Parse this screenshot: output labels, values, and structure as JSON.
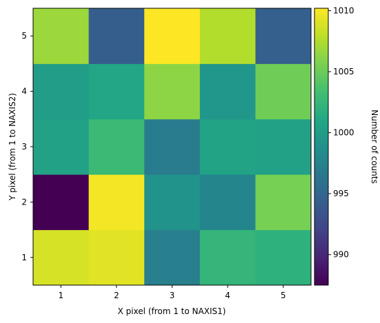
{
  "chart_data": {
    "type": "heatmap",
    "xlabel": "X pixel (from 1 to NAXIS1)",
    "ylabel": "Y pixel (from 1 to NAXIS2)",
    "x": [
      1,
      2,
      3,
      4,
      5
    ],
    "y": [
      1,
      2,
      3,
      4,
      5
    ],
    "values": [
      [
        1008.8,
        1009.2,
        997.2,
        1002.4,
        1002.0
      ],
      [
        987.5,
        1009.8,
        999.0,
        997.8,
        1005.5
      ],
      [
        1000.4,
        1002.8,
        996.9,
        1000.6,
        1000.4
      ],
      [
        1000.0,
        1000.9,
        1006.3,
        999.3,
        1005.2
      ],
      [
        1006.8,
        994.2,
        1010.2,
        1007.6,
        994.3
      ]
    ],
    "colorbar": {
      "label": "Number of counts",
      "range": [
        987.5,
        1010.2
      ],
      "ticks": [
        990,
        995,
        1000,
        1005,
        1010
      ],
      "colormap": "viridis"
    },
    "xticks": [
      "1",
      "2",
      "3",
      "4",
      "5"
    ],
    "yticks": [
      "1",
      "2",
      "3",
      "4",
      "5"
    ]
  }
}
